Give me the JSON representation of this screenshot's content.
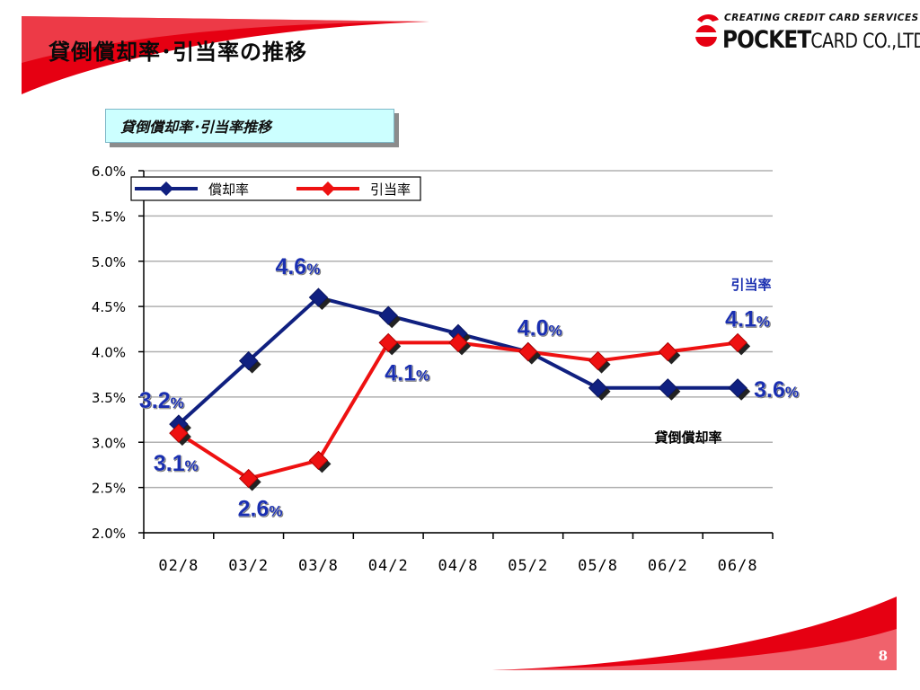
{
  "slide": {
    "title": "貸倒償却率･引当率の推移",
    "page_number": "8"
  },
  "brand": {
    "tagline": "CREATING CREDIT CARD SERVICES",
    "name_bold": "POCKET",
    "name_rest": "CARD CO.,LTD."
  },
  "colors": {
    "accent_red": "#e60012",
    "series_writeoff": "#102080",
    "series_allowance": "#ee1111",
    "data_label_blue": "#1a2fb0",
    "caption_bg": "#ccffff"
  },
  "chart_caption": "貸倒償却率･引当率推移",
  "chart_data": {
    "type": "line",
    "categories": [
      "02/8",
      "03/2",
      "03/8",
      "04/2",
      "04/8",
      "05/2",
      "05/8",
      "06/2",
      "06/8"
    ],
    "series": [
      {
        "name": "償却率",
        "values": [
          3.2,
          3.9,
          4.6,
          4.4,
          4.2,
          4.0,
          3.6,
          3.6,
          3.6
        ]
      },
      {
        "name": "引当率",
        "values": [
          3.1,
          2.6,
          2.8,
          4.1,
          4.1,
          4.0,
          3.9,
          4.0,
          4.1
        ]
      }
    ],
    "ylim": [
      2.0,
      6.0
    ],
    "yticks": [
      "2.0%",
      "2.5%",
      "3.0%",
      "3.5%",
      "4.0%",
      "4.5%",
      "5.0%",
      "5.5%",
      "6.0%"
    ],
    "grid": true,
    "legend_position": "top-left",
    "data_labels": [
      {
        "series": 0,
        "index": 0,
        "num": "3.2",
        "unit": "%"
      },
      {
        "series": 1,
        "index": 0,
        "num": "3.1",
        "unit": "%"
      },
      {
        "series": 1,
        "index": 1,
        "num": "2.6",
        "unit": "%"
      },
      {
        "series": 0,
        "index": 2,
        "num": "4.6",
        "unit": "%"
      },
      {
        "series": 1,
        "index": 3,
        "num": "4.1",
        "unit": "%"
      },
      {
        "series": 0,
        "index": 5,
        "num": "4.0",
        "unit": "%"
      },
      {
        "series": 1,
        "index": 8,
        "num": "4.1",
        "unit": "%"
      },
      {
        "series": 0,
        "index": 8,
        "num": "3.6",
        "unit": "%"
      }
    ],
    "annotations": [
      {
        "text": "引当率",
        "series": 1
      },
      {
        "text": "貸倒償却率",
        "series": 0
      }
    ]
  }
}
